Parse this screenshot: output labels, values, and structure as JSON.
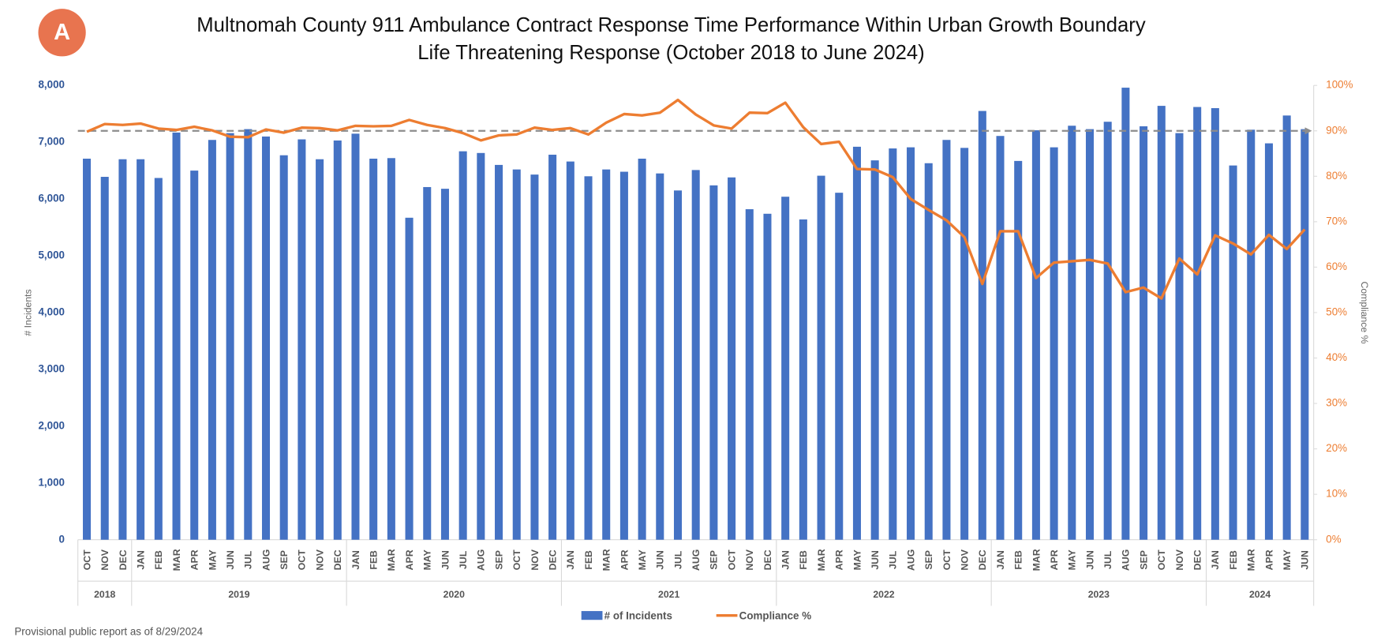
{
  "badge": "A",
  "footer": "Provisional public report as of 8/29/2024",
  "chart_data": {
    "type": "bar-line",
    "title": [
      "Multnomah County 911 Ambulance Contract Response Time Performance Within Urban Growth Boundary",
      "Life Threatening Response (October 2018 to June 2024)"
    ],
    "y_label": "# Incidents",
    "y2_label": "Compliance %",
    "categories": [
      "OCT",
      "NOV",
      "DEC",
      "JAN",
      "FEB",
      "MAR",
      "APR",
      "MAY",
      "JUN",
      "JUL",
      "AUG",
      "SEP",
      "OCT",
      "NOV",
      "DEC",
      "JAN",
      "FEB",
      "MAR",
      "APR",
      "MAY",
      "JUN",
      "JUL",
      "AUG",
      "SEP",
      "OCT",
      "NOV",
      "DEC",
      "JAN",
      "FEB",
      "MAR",
      "APR",
      "MAY",
      "JUN",
      "JUL",
      "AUG",
      "SEP",
      "OCT",
      "NOV",
      "DEC",
      "JAN",
      "FEB",
      "MAR",
      "APR",
      "MAY",
      "JUN",
      "JUL",
      "AUG",
      "SEP",
      "OCT",
      "NOV",
      "DEC",
      "JAN",
      "FEB",
      "MAR",
      "APR",
      "MAY",
      "JUN",
      "JUL",
      "AUG",
      "SEP",
      "OCT",
      "NOV",
      "DEC",
      "JAN",
      "FEB",
      "MAR",
      "APR",
      "MAY",
      "JUN"
    ],
    "category_years": [
      "2018",
      "2018",
      "2018",
      "2019",
      "2019",
      "2019",
      "2019",
      "2019",
      "2019",
      "2019",
      "2019",
      "2019",
      "2019",
      "2019",
      "2019",
      "2020",
      "2020",
      "2020",
      "2020",
      "2020",
      "2020",
      "2020",
      "2020",
      "2020",
      "2020",
      "2020",
      "2020",
      "2021",
      "2021",
      "2021",
      "2021",
      "2021",
      "2021",
      "2021",
      "2021",
      "2021",
      "2021",
      "2021",
      "2021",
      "2022",
      "2022",
      "2022",
      "2022",
      "2022",
      "2022",
      "2022",
      "2022",
      "2022",
      "2022",
      "2022",
      "2022",
      "2023",
      "2023",
      "2023",
      "2023",
      "2023",
      "2023",
      "2023",
      "2023",
      "2023",
      "2023",
      "2023",
      "2023",
      "2024",
      "2024",
      "2024",
      "2024",
      "2024",
      "2024"
    ],
    "series": [
      {
        "name": "# of  Incidents",
        "type": "bar",
        "color": "#4472c4",
        "values": [
          6710,
          6390,
          6700,
          6700,
          6370,
          7170,
          6500,
          7040,
          7160,
          7230,
          7100,
          6770,
          7050,
          6700,
          7030,
          7150,
          6710,
          6720,
          5670,
          6210,
          6180,
          6840,
          6810,
          6600,
          6520,
          6430,
          6780,
          6660,
          6400,
          6520,
          6480,
          6710,
          6450,
          6150,
          6510,
          6240,
          6380,
          5820,
          5740,
          6040,
          5640,
          6410,
          6110,
          6920,
          6680,
          6890,
          6910,
          6630,
          7040,
          6900,
          7550,
          7110,
          6670,
          7210,
          6910,
          7290,
          7230,
          7360,
          7960,
          7280,
          7640,
          7160,
          7620,
          7600,
          6590,
          7220,
          6980,
          7470,
          7230
        ]
      },
      {
        "name": "Compliance %",
        "type": "line",
        "axis": "y2",
        "color": "#ed7d31",
        "values": [
          89.8,
          91.5,
          91.3,
          91.6,
          90.5,
          90.2,
          90.9,
          90.1,
          88.7,
          88.6,
          90.3,
          89.6,
          90.7,
          90.6,
          90.1,
          91.1,
          91.0,
          91.1,
          92.4,
          91.3,
          90.6,
          89.5,
          87.9,
          89.0,
          89.2,
          90.7,
          90.2,
          90.6,
          89.2,
          91.8,
          93.7,
          93.4,
          94.0,
          96.8,
          93.6,
          91.2,
          90.5,
          94.0,
          93.9,
          96.2,
          90.8,
          87.1,
          87.6,
          81.6,
          81.5,
          79.8,
          75.0,
          72.6,
          70.3,
          66.6,
          56.3,
          67.9,
          67.9,
          57.6,
          61.0,
          61.3,
          61.6,
          60.8,
          54.5,
          55.5,
          53.1,
          61.9,
          58.4,
          67.0,
          65.2,
          62.8,
          67.1,
          64.0,
          68.3
        ]
      }
    ],
    "target_line": {
      "value": 90,
      "axis": "y2",
      "color": "#8c8c8c"
    },
    "ylim": [
      0,
      8000
    ],
    "yticks": [
      0,
      {
        "value": 1000,
        "label": "1,000"
      },
      {
        "value": 2000,
        "label": "2,000"
      },
      {
        "value": 3000,
        "label": "3,000"
      },
      {
        "value": 4000,
        "label": "4,000"
      },
      {
        "value": 5000,
        "label": "5,000"
      },
      {
        "value": 6000,
        "label": "6,000"
      },
      {
        "value": 7000,
        "label": "7,000"
      },
      {
        "value": 8000,
        "label": "8,000"
      }
    ],
    "y2lim": [
      0,
      100
    ],
    "y2ticks": [
      {
        "value": 0,
        "label": "0%"
      },
      {
        "value": 10,
        "label": "10%"
      },
      {
        "value": 20,
        "label": "20%"
      },
      {
        "value": 30,
        "label": "30%"
      },
      {
        "value": 40,
        "label": "40%"
      },
      {
        "value": 50,
        "label": "50%"
      },
      {
        "value": 60,
        "label": "60%"
      },
      {
        "value": 70,
        "label": "70%"
      },
      {
        "value": 80,
        "label": "80%"
      },
      {
        "value": 90,
        "label": "90%"
      },
      {
        "value": 100,
        "label": "100%"
      }
    ],
    "grid": false,
    "legend": "bottom"
  }
}
